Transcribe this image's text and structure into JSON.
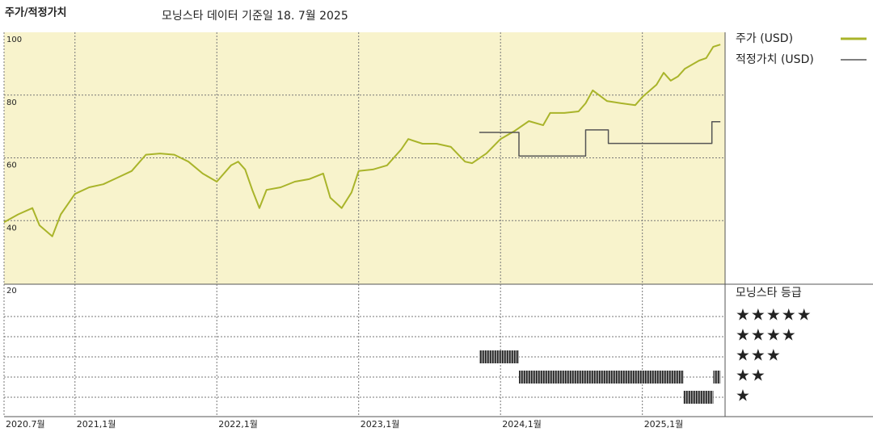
{
  "chart_data": {
    "type": "line",
    "title": "주가/적정가치",
    "subtitle": "모닝스타 데이터 기준일 18. 7월 2025",
    "xlim": [
      2020.5,
      2025.583
    ],
    "xticks": [
      {
        "value": 2020.5,
        "label": "2020.7월"
      },
      {
        "value": 2021,
        "label": "2021,1월"
      },
      {
        "value": 2022,
        "label": "2022,1월"
      },
      {
        "value": 2023,
        "label": "2023,1월"
      },
      {
        "value": 2024,
        "label": "2024,1월"
      },
      {
        "value": 2025,
        "label": "2025,1월"
      }
    ],
    "ylim": [
      20,
      100
    ],
    "yticks": [
      20,
      40,
      60,
      80,
      100
    ],
    "grid": true,
    "series": [
      {
        "name": "주가 (USD)",
        "color": "#a9b42a",
        "x": [
          2020.5,
          2020.6,
          2020.7,
          2020.75,
          2020.84,
          2020.9,
          2021.0,
          2021.1,
          2021.2,
          2021.3,
          2021.4,
          2021.5,
          2021.6,
          2021.7,
          2021.8,
          2021.9,
          2022.0,
          2022.1,
          2022.15,
          2022.2,
          2022.25,
          2022.3,
          2022.35,
          2022.45,
          2022.55,
          2022.65,
          2022.75,
          2022.8,
          2022.88,
          2022.95,
          2023.0,
          2023.1,
          2023.2,
          2023.3,
          2023.35,
          2023.45,
          2023.55,
          2023.65,
          2023.75,
          2023.8,
          2023.9,
          2024.0,
          2024.1,
          2024.2,
          2024.3,
          2024.35,
          2024.45,
          2024.55,
          2024.6,
          2024.65,
          2024.75,
          2024.85,
          2024.95,
          2025.0,
          2025.1,
          2025.15,
          2025.2,
          2025.25,
          2025.3,
          2025.4,
          2025.45,
          2025.5,
          2025.55
        ],
        "values": [
          39.5,
          42,
          44,
          38.5,
          35,
          42,
          48.5,
          50.6,
          51.6,
          53.7,
          55.8,
          61,
          61.4,
          61,
          58.8,
          55,
          52.4,
          57.6,
          58.8,
          56.3,
          49.8,
          44,
          49.8,
          50.6,
          52.4,
          53.2,
          55,
          47.3,
          44,
          49,
          55.8,
          56.3,
          57.6,
          62.7,
          66,
          64.5,
          64.5,
          63.5,
          58.8,
          58.3,
          61.4,
          66,
          68.6,
          71.7,
          70.4,
          74.3,
          74.3,
          74.8,
          77.4,
          81.5,
          78.1,
          77.4,
          76.8,
          79.4,
          83.3,
          87.1,
          84.6,
          85.9,
          88.4,
          91,
          91.8,
          95.4,
          96.1
        ]
      },
      {
        "name": "적정가치 (USD)",
        "color": "#555555",
        "x": [
          2023.85,
          2024.13,
          2024.13,
          2024.6,
          2024.6,
          2024.76,
          2024.76,
          2025.49,
          2025.49,
          2025.55
        ],
        "values": [
          68.1,
          68.1,
          60.6,
          60.6,
          68.9,
          68.9,
          64.6,
          64.6,
          71.5,
          71.5
        ]
      }
    ],
    "rating_title": "모닝스타 등급",
    "rating_levels": [
      {
        "stars": 5,
        "label": "★★★★★"
      },
      {
        "stars": 4,
        "label": "★★★★"
      },
      {
        "stars": 3,
        "label": "★★★"
      },
      {
        "stars": 2,
        "label": "★★"
      },
      {
        "stars": 1,
        "label": "★"
      }
    ],
    "ratings": [
      {
        "stars": 3,
        "start": 2023.85,
        "end": 2024.13
      },
      {
        "stars": 2,
        "start": 2024.13,
        "end": 2025.29
      },
      {
        "stars": 1,
        "start": 2025.29,
        "end": 2025.5
      },
      {
        "stars": 2,
        "start": 2025.5,
        "end": 2025.55
      }
    ]
  }
}
